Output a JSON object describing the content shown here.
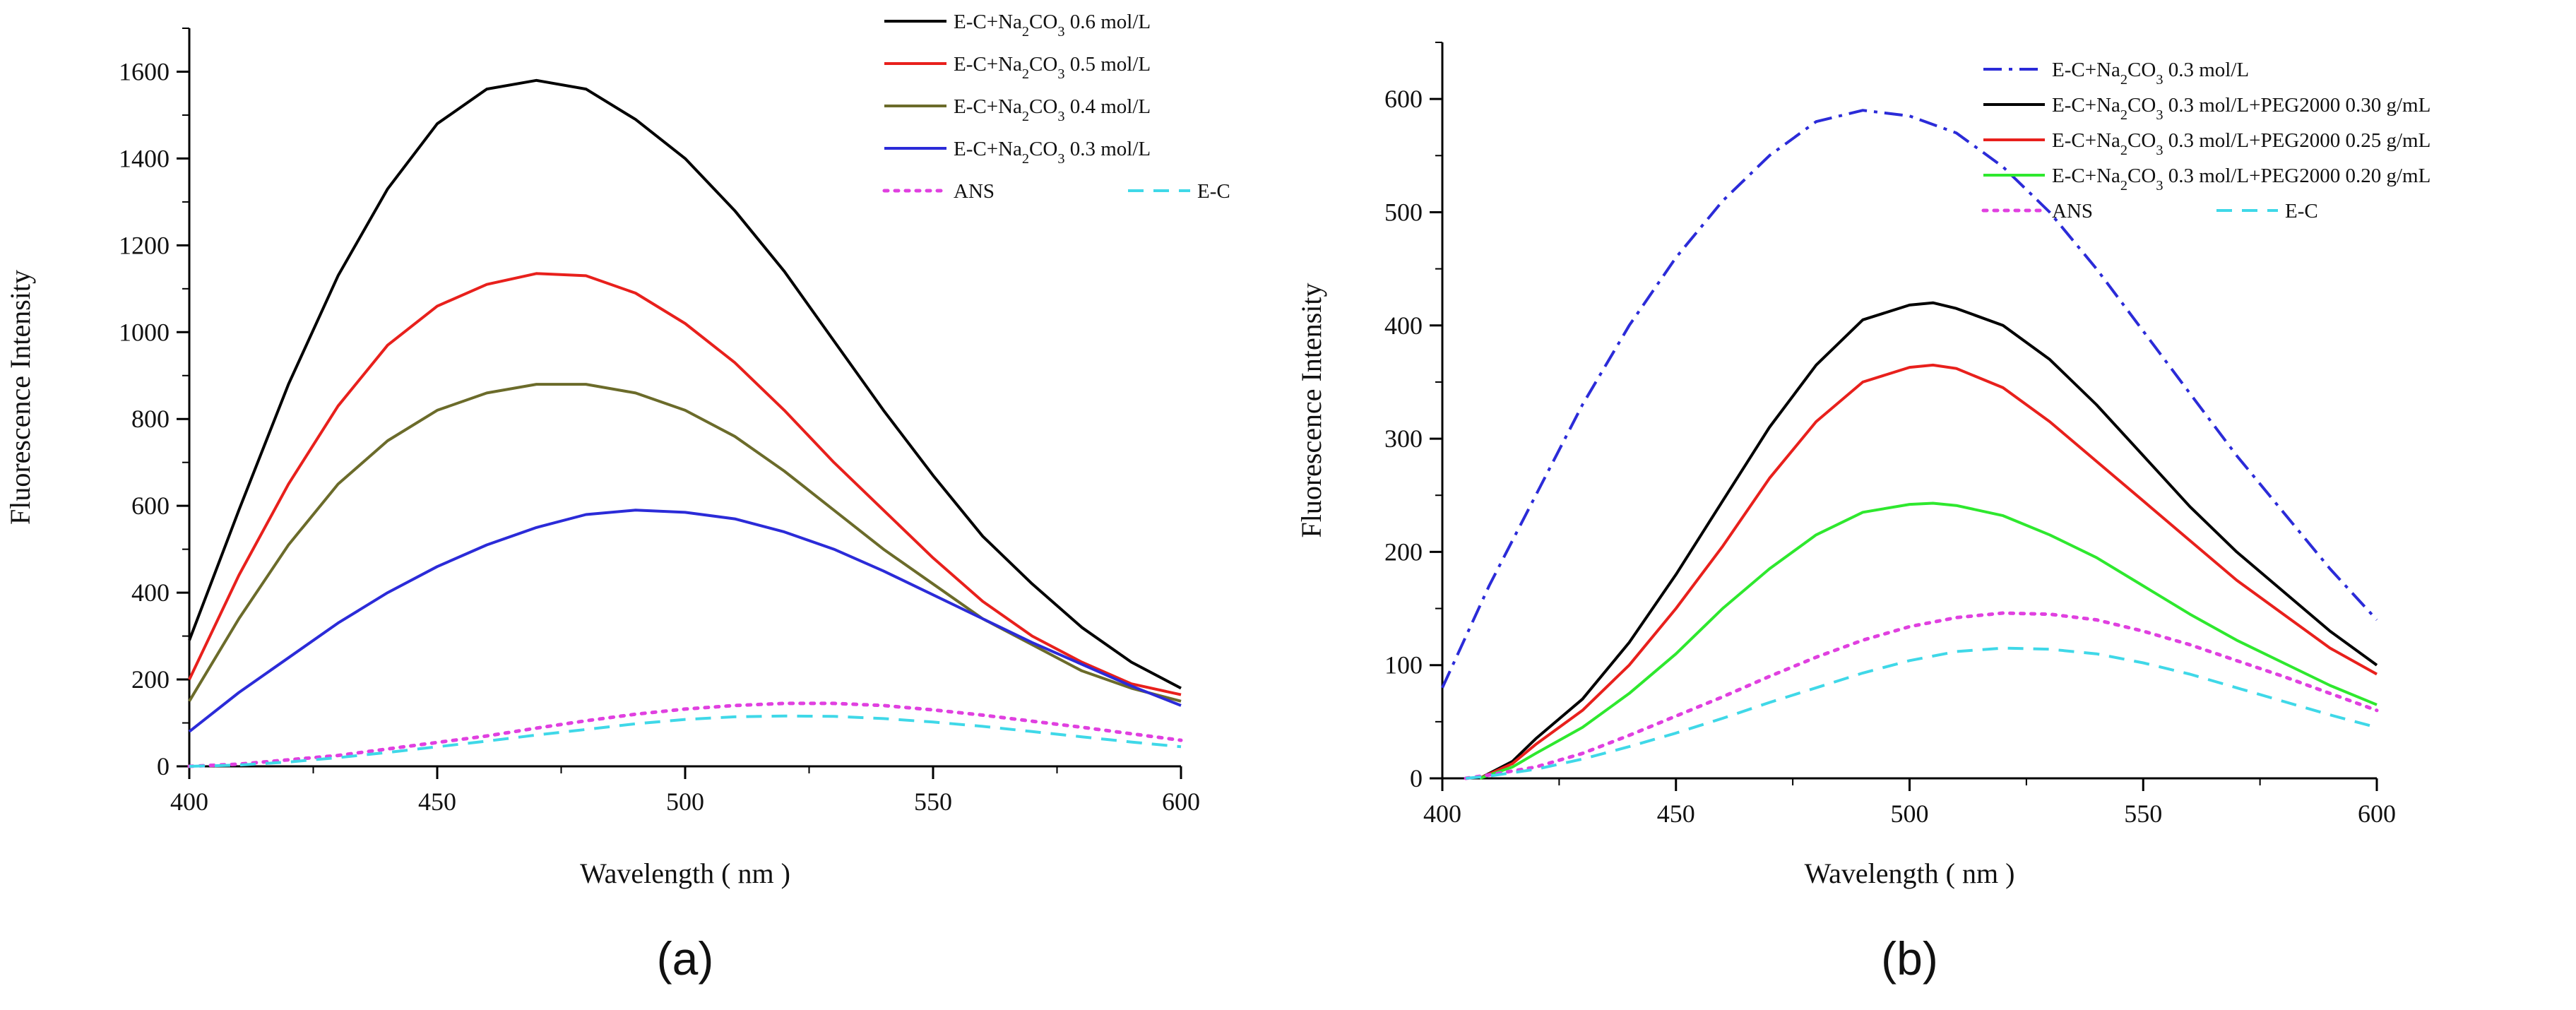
{
  "chart_data": [
    {
      "panel": "(a)",
      "type": "line",
      "xlabel": "Wavelength ( nm )",
      "ylabel": "Fluorescence Intensity",
      "xlim": [
        400,
        600
      ],
      "ylim": [
        0,
        1700
      ],
      "xticks": [
        400,
        450,
        500,
        550,
        600
      ],
      "yticks": [
        0,
        200,
        400,
        600,
        800,
        1000,
        1200,
        1400,
        1600
      ],
      "grid": false,
      "legend_position": "top-right",
      "legend_layout": [
        [
          0
        ],
        [
          1
        ],
        [
          2
        ],
        [
          3
        ],
        [
          4,
          5
        ]
      ],
      "series": [
        {
          "name_html": "E-C+Na<tspan baseline-shift=\"sub\" font-size=\"70%\">2</tspan>CO<tspan baseline-shift=\"sub\" font-size=\"70%\">3</tspan> 0.6 mol/L",
          "name": "E-C+Na2CO3 0.6 mol/L",
          "color": "#000000",
          "dash": "solid",
          "x": [
            400,
            410,
            420,
            430,
            440,
            450,
            460,
            470,
            480,
            490,
            500,
            510,
            520,
            530,
            540,
            550,
            560,
            570,
            580,
            590,
            600
          ],
          "y": [
            290,
            590,
            880,
            1130,
            1330,
            1480,
            1560,
            1580,
            1560,
            1490,
            1400,
            1280,
            1140,
            980,
            820,
            670,
            530,
            420,
            320,
            240,
            180
          ]
        },
        {
          "name_html": "E-C+Na<tspan baseline-shift=\"sub\" font-size=\"70%\">2</tspan>CO<tspan baseline-shift=\"sub\" font-size=\"70%\">3</tspan> 0.5 mol/L",
          "name": "E-C+Na2CO3 0.5 mol/L",
          "color": "#e8201c",
          "dash": "solid",
          "x": [
            400,
            410,
            420,
            430,
            440,
            450,
            460,
            470,
            480,
            490,
            500,
            510,
            520,
            530,
            540,
            550,
            560,
            570,
            580,
            590,
            600
          ],
          "y": [
            200,
            440,
            650,
            830,
            970,
            1060,
            1110,
            1135,
            1130,
            1090,
            1020,
            930,
            820,
            700,
            590,
            480,
            380,
            300,
            240,
            190,
            165
          ]
        },
        {
          "name_html": "E-C+Na<tspan baseline-shift=\"sub\" font-size=\"70%\">2</tspan>CO<tspan baseline-shift=\"sub\" font-size=\"70%\">3</tspan> 0.4 mol/L",
          "name": "E-C+Na2CO3 0.4 mol/L",
          "color": "#6b6b2a",
          "dash": "solid",
          "x": [
            400,
            410,
            420,
            430,
            440,
            450,
            460,
            470,
            480,
            490,
            500,
            510,
            520,
            530,
            540,
            550,
            560,
            570,
            580,
            590,
            600
          ],
          "y": [
            150,
            340,
            510,
            650,
            750,
            820,
            860,
            880,
            880,
            860,
            820,
            760,
            680,
            590,
            500,
            420,
            340,
            280,
            220,
            180,
            150
          ]
        },
        {
          "name_html": "E-C+Na<tspan baseline-shift=\"sub\" font-size=\"70%\">2</tspan>CO<tspan baseline-shift=\"sub\" font-size=\"70%\">3</tspan> 0.3 mol/L",
          "name": "E-C+Na2CO3 0.3 mol/L",
          "color": "#2b2bd8",
          "dash": "solid",
          "x": [
            400,
            410,
            420,
            430,
            440,
            450,
            460,
            470,
            480,
            490,
            500,
            510,
            520,
            530,
            540,
            550,
            560,
            570,
            580,
            590,
            600
          ],
          "y": [
            80,
            170,
            250,
            330,
            400,
            460,
            510,
            550,
            580,
            590,
            585,
            570,
            540,
            500,
            450,
            395,
            340,
            285,
            235,
            185,
            140
          ]
        },
        {
          "name_html": "ANS",
          "name": "ANS",
          "color": "#e040e0",
          "dash": "dotted",
          "x": [
            400,
            410,
            420,
            430,
            440,
            450,
            460,
            470,
            480,
            490,
            500,
            510,
            520,
            530,
            540,
            550,
            560,
            570,
            580,
            590,
            600
          ],
          "y": [
            0,
            5,
            15,
            25,
            40,
            55,
            70,
            88,
            105,
            120,
            132,
            140,
            145,
            145,
            140,
            130,
            118,
            104,
            90,
            75,
            60
          ]
        },
        {
          "name_html": "E-C",
          "name": "E-C",
          "color": "#3fd8e8",
          "dash": "dashed",
          "x": [
            400,
            410,
            420,
            430,
            440,
            450,
            460,
            470,
            480,
            490,
            500,
            510,
            520,
            530,
            540,
            550,
            560,
            570,
            580,
            590,
            600
          ],
          "y": [
            0,
            3,
            10,
            20,
            32,
            45,
            58,
            72,
            85,
            98,
            108,
            114,
            116,
            115,
            110,
            102,
            92,
            80,
            68,
            56,
            45
          ]
        }
      ]
    },
    {
      "panel": "(b)",
      "type": "line",
      "xlabel": "Wavelength ( nm )",
      "ylabel": "Fluorescence Intensity",
      "xlim": [
        400,
        600
      ],
      "ylim": [
        0,
        650
      ],
      "xticks": [
        400,
        450,
        500,
        550,
        600
      ],
      "yticks": [
        0,
        100,
        200,
        300,
        400,
        500,
        600
      ],
      "grid": false,
      "legend_position": "top-right",
      "legend_layout": [
        [
          0
        ],
        [
          1
        ],
        [
          2
        ],
        [
          3
        ],
        [
          4,
          5
        ]
      ],
      "series": [
        {
          "name_html": "E-C+Na<tspan baseline-shift=\"sub\" font-size=\"70%\">2</tspan>CO<tspan baseline-shift=\"sub\" font-size=\"70%\">3</tspan> 0.3 mol/L",
          "name": "E-C+Na2CO3 0.3 mol/L",
          "color": "#2b2bd8",
          "dash": "dashdot",
          "x": [
            400,
            410,
            420,
            430,
            440,
            450,
            460,
            470,
            480,
            490,
            500,
            510,
            520,
            530,
            540,
            550,
            560,
            570,
            580,
            590,
            600
          ],
          "y": [
            80,
            170,
            250,
            330,
            400,
            460,
            510,
            550,
            580,
            590,
            585,
            570,
            540,
            500,
            450,
            395,
            340,
            285,
            235,
            185,
            140
          ]
        },
        {
          "name_html": "E-C+Na<tspan baseline-shift=\"sub\" font-size=\"70%\">2</tspan>CO<tspan baseline-shift=\"sub\" font-size=\"70%\">3</tspan> 0.3 mol/L+PEG2000 0.30 g/mL",
          "name": "E-C+Na2CO3 0.3 mol/L+PEG2000 0.30 g/mL",
          "color": "#000000",
          "dash": "solid",
          "x": [
            408,
            415,
            420,
            430,
            440,
            450,
            460,
            470,
            480,
            490,
            500,
            505,
            510,
            520,
            530,
            540,
            550,
            560,
            570,
            580,
            590,
            600
          ],
          "y": [
            0,
            15,
            35,
            70,
            120,
            180,
            245,
            310,
            365,
            405,
            418,
            420,
            415,
            400,
            370,
            330,
            285,
            240,
            200,
            165,
            130,
            100
          ]
        },
        {
          "name_html": "E-C+Na<tspan baseline-shift=\"sub\" font-size=\"70%\">2</tspan>CO<tspan baseline-shift=\"sub\" font-size=\"70%\">3</tspan> 0.3 mol/L+PEG2000 0.25 g/mL",
          "name": "E-C+Na2CO3 0.3 mol/L+PEG2000 0.25 g/mL",
          "color": "#e8201c",
          "dash": "solid",
          "x": [
            408,
            415,
            420,
            430,
            440,
            450,
            460,
            470,
            480,
            490,
            500,
            505,
            510,
            520,
            530,
            540,
            550,
            560,
            570,
            580,
            590,
            600
          ],
          "y": [
            0,
            13,
            30,
            60,
            100,
            150,
            205,
            265,
            315,
            350,
            363,
            365,
            362,
            345,
            315,
            280,
            245,
            210,
            175,
            145,
            115,
            92
          ]
        },
        {
          "name_html": "E-C+Na<tspan baseline-shift=\"sub\" font-size=\"70%\">2</tspan>CO<tspan baseline-shift=\"sub\" font-size=\"70%\">3</tspan> 0.3 mol/L+PEG2000 0.20 g/mL",
          "name": "E-C+Na2CO3 0.3 mol/L+PEG2000 0.20 g/mL",
          "color": "#2ee82e",
          "dash": "solid",
          "x": [
            408,
            415,
            420,
            430,
            440,
            450,
            460,
            470,
            480,
            490,
            500,
            505,
            510,
            520,
            530,
            540,
            550,
            560,
            570,
            580,
            590,
            600
          ],
          "y": [
            0,
            10,
            22,
            45,
            75,
            110,
            150,
            185,
            215,
            235,
            242,
            243,
            241,
            232,
            215,
            195,
            170,
            145,
            122,
            102,
            82,
            65
          ]
        },
        {
          "name_html": "ANS",
          "name": "ANS",
          "color": "#e040e0",
          "dash": "dotted",
          "x": [
            405,
            410,
            420,
            430,
            440,
            450,
            460,
            470,
            480,
            490,
            500,
            510,
            520,
            530,
            540,
            550,
            560,
            570,
            580,
            590,
            600
          ],
          "y": [
            0,
            3,
            10,
            22,
            38,
            55,
            72,
            90,
            107,
            122,
            134,
            142,
            146,
            145,
            140,
            130,
            118,
            104,
            90,
            75,
            60
          ]
        },
        {
          "name_html": "E-C",
          "name": "E-C",
          "color": "#3fd8e8",
          "dash": "dashed",
          "x": [
            405,
            410,
            420,
            430,
            440,
            450,
            460,
            470,
            480,
            490,
            500,
            510,
            520,
            530,
            540,
            550,
            560,
            570,
            580,
            590,
            600
          ],
          "y": [
            0,
            2,
            8,
            17,
            28,
            40,
            53,
            67,
            80,
            93,
            104,
            112,
            115,
            114,
            110,
            102,
            92,
            80,
            68,
            56,
            45
          ]
        }
      ]
    }
  ]
}
